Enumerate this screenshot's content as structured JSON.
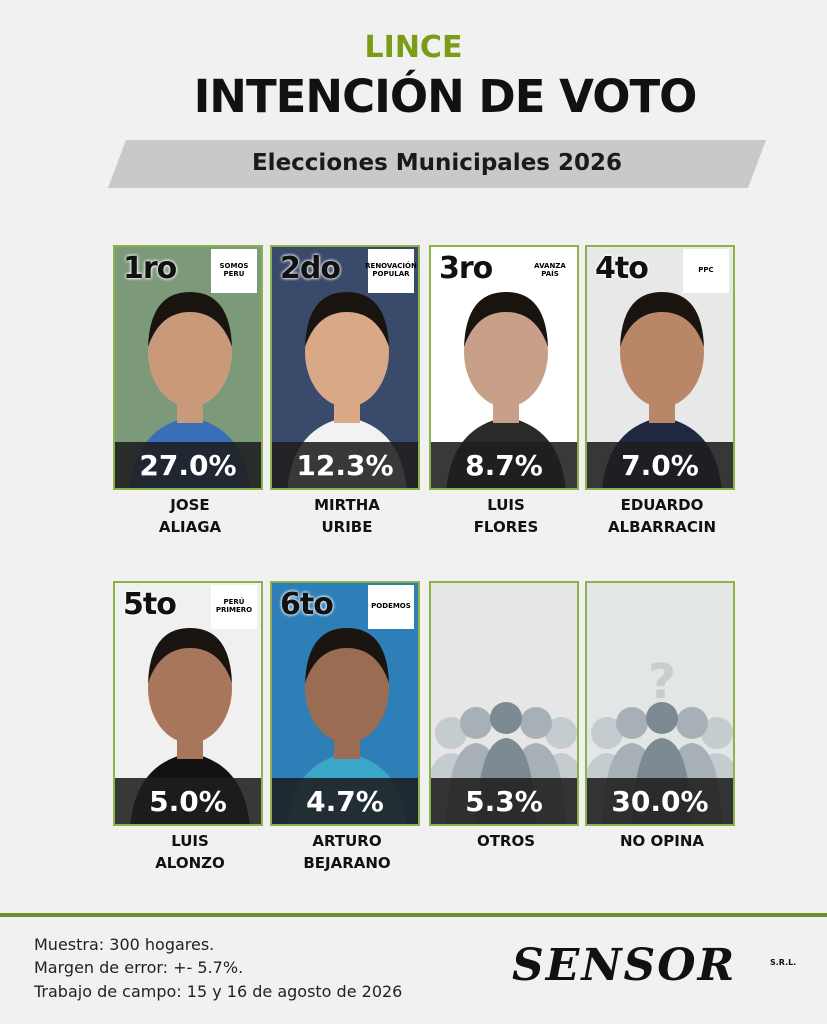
{
  "header": {
    "district": "LINCE",
    "title": "INTENCIÓN DE VOTO",
    "subtitle": "Elecciones Municipales 2026"
  },
  "cards": [
    {
      "rank": "1ro",
      "logo": "SOMOS PERU",
      "percent": "27.0%",
      "name": [
        "JOSE",
        "ALIAGA"
      ]
    },
    {
      "rank": "2do",
      "logo": "RENOVACIÓN POPULAR",
      "percent": "12.3%",
      "name": [
        "MIRTHA",
        "URIBE"
      ]
    },
    {
      "rank": "3ro",
      "logo": "AVANZA PAÍS",
      "percent": "8.7%",
      "name": [
        "LUIS",
        "FLORES"
      ]
    },
    {
      "rank": "4to",
      "logo": "PPC",
      "percent": "7.0%",
      "name": [
        "EDUARDO",
        "ALBARRACIN"
      ]
    },
    {
      "rank": "5to",
      "logo": "PERÚ PRIMERO",
      "percent": "5.0%",
      "name": [
        "LUIS",
        "ALONZO"
      ]
    },
    {
      "rank": "6to",
      "logo": "PODEMOS",
      "percent": "4.7%",
      "name": [
        "ARTURO",
        "BEJARANO"
      ]
    },
    {
      "percent": "5.3%",
      "name": [
        "OTROS"
      ]
    },
    {
      "percent": "30.0%",
      "name": [
        "NO OPINA"
      ]
    }
  ],
  "footer": {
    "lines": [
      "Muestra: 300 hogares.",
      "Margen de error: +- 5.7%.",
      "Trabajo de campo: 15 y 16 de agosto de 2026"
    ],
    "brand": "SENSOR",
    "brand_suffix": "S.R.L."
  }
}
